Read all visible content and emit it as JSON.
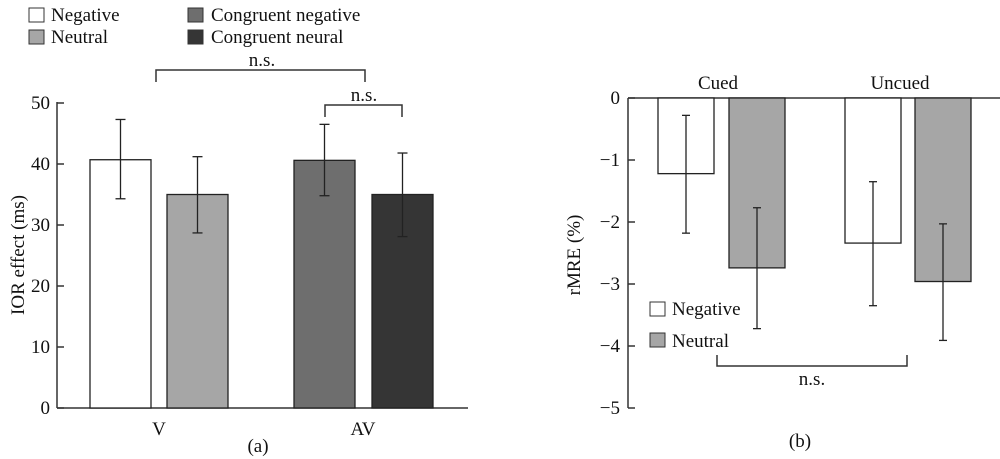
{
  "chart_data": [
    {
      "type": "bar",
      "panel_label": "(a)",
      "ylabel": "IOR effect (ms)",
      "ylim": [
        0,
        50
      ],
      "yticks": [
        0,
        10,
        20,
        30,
        40,
        50
      ],
      "categories": [
        "V",
        "AV"
      ],
      "bars": [
        {
          "category": "V",
          "series": "Negative",
          "value": 40.7,
          "err_high": 47.3,
          "err_low": 34.3,
          "color": "#ffffff"
        },
        {
          "category": "V",
          "series": "Neutral",
          "value": 35.0,
          "err_high": 41.2,
          "err_low": 28.7,
          "color": "#a6a6a6"
        },
        {
          "category": "AV",
          "series": "Congruent negative",
          "value": 40.6,
          "err_high": 46.5,
          "err_low": 34.8,
          "color": "#6e6e6e"
        },
        {
          "category": "AV",
          "series": "Congruent neural",
          "value": 35.0,
          "err_high": 41.8,
          "err_low": 28.1,
          "color": "#353535"
        }
      ],
      "legend": [
        {
          "label": "Negative",
          "color": "#ffffff"
        },
        {
          "label": "Neutral",
          "color": "#a6a6a6"
        },
        {
          "label": "Congruent negative",
          "color": "#6e6e6e"
        },
        {
          "label": "Congruent neural",
          "color": "#353535"
        }
      ],
      "legend_position": "top-left",
      "annotations": [
        {
          "text": "n.s.",
          "between": [
            "V Negative",
            "AV"
          ]
        },
        {
          "text": "n.s.",
          "between": [
            "AV Congruent negative",
            "AV Congruent neural"
          ]
        }
      ]
    },
    {
      "type": "bar",
      "panel_label": "(b)",
      "ylabel": "rMRE (%)",
      "ylim": [
        -5,
        0
      ],
      "yticks": [
        0,
        -1,
        -2,
        -3,
        -4,
        -5
      ],
      "tick_labels": [
        "0",
        "−1",
        "−2",
        "−3",
        "−4",
        "−5"
      ],
      "categories": [
        "Cued",
        "Uncued"
      ],
      "series": [
        {
          "name": "Negative",
          "color": "#ffffff",
          "values": [
            -1.22,
            -2.34
          ],
          "err_high": [
            -0.28,
            -1.35
          ],
          "err_low": [
            -2.18,
            -3.35
          ]
        },
        {
          "name": "Neutral",
          "color": "#a6a6a6",
          "values": [
            -2.74,
            -2.96
          ],
          "err_high": [
            -1.77,
            -2.03
          ],
          "err_low": [
            -3.72,
            -3.91
          ]
        }
      ],
      "legend": [
        {
          "label": "Negative",
          "color": "#ffffff"
        },
        {
          "label": "Neutral",
          "color": "#a6a6a6"
        }
      ],
      "legend_position": "bottom-left",
      "annotations": [
        {
          "text": "n.s.",
          "between": [
            "Cued Neutral",
            "Uncued Neutral"
          ]
        }
      ]
    }
  ]
}
